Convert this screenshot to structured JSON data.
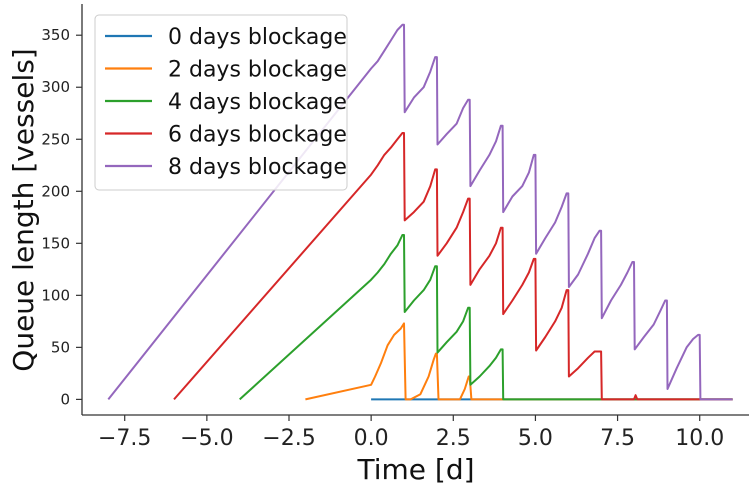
{
  "chart_data": {
    "type": "line",
    "xlabel": "Time [d]",
    "ylabel": "Queue length [vessels]",
    "xlim": [
      -8.8,
      11.5
    ],
    "ylim": [
      -15,
      380
    ],
    "xticks": [
      -7.5,
      -5.0,
      -2.5,
      0.0,
      2.5,
      5.0,
      7.5,
      10.0
    ],
    "xtick_labels": [
      "−7.5",
      "−5.0",
      "−2.5",
      "0.0",
      "2.5",
      "5.0",
      "7.5",
      "10.0"
    ],
    "yticks": [
      0,
      50,
      100,
      150,
      200,
      250,
      300,
      350
    ],
    "ytick_labels": [
      "0",
      "50",
      "100",
      "150",
      "200",
      "250",
      "300",
      "350"
    ],
    "grid": false,
    "legend_position": "top-left",
    "series": [
      {
        "name": "0 days blockage",
        "color": "#1f77b4",
        "x": [
          0,
          11
        ],
        "y": [
          0,
          0
        ]
      },
      {
        "name": "2 days blockage",
        "color": "#ff7f0e",
        "x": [
          -2,
          0,
          0.12,
          0.3,
          0.5,
          0.7,
          0.9,
          1.0,
          1.05,
          1.2,
          1.5,
          1.75,
          1.9,
          1.97,
          2.0,
          2.05,
          2.3,
          2.7,
          2.85,
          2.97,
          3.0,
          3.05,
          4.0,
          11
        ],
        "y": [
          0,
          14,
          22,
          35,
          52,
          62,
          68,
          73,
          0,
          0,
          5,
          22,
          38,
          44,
          44,
          0,
          0,
          0,
          10,
          22,
          22,
          0,
          0,
          0
        ]
      },
      {
        "name": "4 days blockage",
        "color": "#2ca02c",
        "x": [
          -4,
          0,
          0.2,
          0.4,
          0.6,
          0.8,
          0.95,
          1.0,
          1.02,
          1.3,
          1.6,
          1.8,
          1.95,
          2.0,
          2.02,
          2.3,
          2.6,
          2.8,
          2.95,
          3.0,
          3.02,
          3.3,
          3.6,
          3.8,
          3.95,
          4.0,
          4.02,
          4.5,
          5.0,
          11
        ],
        "y": [
          0,
          115,
          122,
          130,
          140,
          148,
          158,
          158,
          84,
          95,
          105,
          115,
          128,
          128,
          45,
          55,
          65,
          75,
          88,
          88,
          14,
          22,
          32,
          40,
          48,
          48,
          0,
          0,
          0,
          0
        ]
      },
      {
        "name": "6 days blockage",
        "color": "#d62728",
        "x": [
          -6,
          0,
          0.2,
          0.4,
          0.6,
          0.8,
          0.95,
          1.0,
          1.02,
          1.3,
          1.6,
          1.8,
          1.95,
          2.0,
          2.02,
          2.3,
          2.6,
          2.8,
          2.95,
          3.0,
          3.02,
          3.3,
          3.6,
          3.8,
          3.95,
          4.0,
          4.02,
          4.3,
          4.6,
          4.8,
          4.95,
          5.0,
          5.02,
          5.3,
          5.6,
          5.8,
          5.95,
          6.0,
          6.02,
          6.3,
          6.6,
          6.8,
          6.95,
          7.0,
          7.02,
          8.0,
          8.05,
          8.1,
          9.0,
          11
        ],
        "y": [
          0,
          216,
          225,
          235,
          242,
          250,
          256,
          256,
          172,
          180,
          190,
          205,
          221,
          221,
          138,
          150,
          165,
          180,
          193,
          193,
          110,
          125,
          138,
          150,
          165,
          165,
          82,
          95,
          110,
          122,
          135,
          135,
          47,
          60,
          75,
          88,
          105,
          105,
          22,
          30,
          40,
          46,
          46,
          46,
          0,
          0,
          4,
          0,
          0,
          0
        ]
      },
      {
        "name": "8 days blockage",
        "color": "#9467bd",
        "x": [
          -8,
          0,
          0.2,
          0.4,
          0.6,
          0.8,
          0.95,
          1.0,
          1.02,
          1.3,
          1.6,
          1.8,
          1.95,
          2.0,
          2.02,
          2.3,
          2.6,
          2.8,
          2.95,
          3.0,
          3.02,
          3.3,
          3.6,
          3.8,
          3.95,
          4.0,
          4.02,
          4.3,
          4.6,
          4.8,
          4.95,
          5.0,
          5.02,
          5.3,
          5.6,
          5.8,
          5.95,
          6.0,
          6.02,
          6.3,
          6.6,
          6.8,
          6.95,
          7.0,
          7.02,
          7.3,
          7.6,
          7.8,
          7.95,
          8.0,
          8.02,
          8.3,
          8.6,
          8.8,
          8.95,
          9.0,
          9.02,
          9.3,
          9.6,
          9.8,
          9.95,
          10.0,
          10.02,
          11
        ],
        "y": [
          0,
          318,
          325,
          335,
          345,
          355,
          360,
          360,
          276,
          290,
          300,
          315,
          329,
          329,
          245,
          255,
          265,
          280,
          288,
          288,
          205,
          220,
          235,
          248,
          263,
          263,
          180,
          195,
          205,
          218,
          235,
          235,
          140,
          155,
          170,
          185,
          198,
          198,
          108,
          120,
          140,
          155,
          162,
          162,
          78,
          95,
          110,
          122,
          132,
          132,
          48,
          60,
          72,
          85,
          95,
          95,
          10,
          30,
          50,
          58,
          62,
          62,
          0,
          0
        ]
      }
    ]
  }
}
